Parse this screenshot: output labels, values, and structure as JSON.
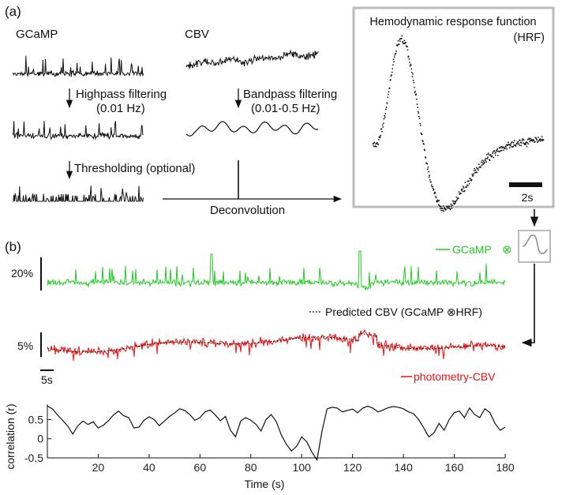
{
  "panel_a": {
    "label": "(a)",
    "gcamp_label": "GCaMP",
    "cbv_label": "CBV",
    "step_highpass": "Highpass filtering",
    "step_highpass_param": "(0.01 Hz)",
    "step_bandpass": "Bandpass filtering",
    "step_bandpass_param": "(0.01-0.5 Hz)",
    "step_threshold": "Thresholding (optional)",
    "step_deconvolution": "Deconvolution",
    "hrf_title": "Hemodynamic response function",
    "hrf_abbrev": "(HRF)",
    "hrf_scale_label": "2s"
  },
  "panel_b": {
    "label": "(b)",
    "gcamp_legend": "GCaMP",
    "conv_symbol": "⊗",
    "predicted_legend": "Predicted CBV (GCaMP ⊗HRF)",
    "photometry_legend": "photometry-CBV",
    "scale_gcamp": "20%",
    "scale_cbv": "5%",
    "scale_time": "5s"
  },
  "colors": {
    "gcamp": "#22cc22",
    "photometry": "#ee1111",
    "box_border": "#bbbbbb",
    "hrf_icon_line": "#888888"
  },
  "chart_data": {
    "type": "line",
    "title": "",
    "xlabel": "Time (s)",
    "ylabel": "correlation (r)",
    "xlim": [
      0,
      180
    ],
    "ylim": [
      -0.5,
      0.9
    ],
    "x_ticks": [
      20,
      40,
      60,
      80,
      100,
      120,
      140,
      160,
      180
    ],
    "y_ticks": [
      0.5,
      0,
      -0.5
    ],
    "y_tick_labels": [
      "0.5",
      "0",
      "-0.5"
    ],
    "series": [
      {
        "name": "correlation",
        "x": [
          0,
          2,
          4,
          6,
          8,
          10,
          12,
          14,
          16,
          18,
          20,
          22,
          24,
          26,
          28,
          30,
          32,
          34,
          36,
          38,
          40,
          42,
          44,
          46,
          48,
          50,
          52,
          54,
          56,
          58,
          60,
          62,
          64,
          66,
          68,
          70,
          72,
          74,
          76,
          78,
          80,
          82,
          84,
          86,
          88,
          90,
          92,
          94,
          96,
          98,
          100,
          102,
          104,
          106,
          108,
          110,
          112,
          114,
          116,
          118,
          120,
          122,
          124,
          126,
          128,
          130,
          132,
          134,
          136,
          138,
          140,
          142,
          144,
          146,
          148,
          150,
          152,
          154,
          156,
          158,
          160,
          162,
          164,
          166,
          168,
          170,
          172,
          174,
          176,
          178,
          180
        ],
        "values": [
          0.85,
          0.78,
          0.62,
          0.48,
          0.33,
          0.12,
          0.34,
          0.46,
          0.37,
          0.44,
          0.28,
          0.35,
          0.47,
          0.62,
          0.72,
          0.6,
          0.55,
          0.28,
          0.3,
          0.48,
          0.57,
          0.5,
          0.34,
          0.46,
          0.58,
          0.67,
          0.78,
          0.74,
          0.63,
          0.48,
          0.55,
          0.7,
          0.75,
          0.62,
          0.47,
          0.58,
          0.22,
          0.05,
          0.46,
          0.55,
          0.48,
          0.38,
          0.2,
          0.5,
          0.63,
          0.45,
          0.1,
          -0.15,
          -0.32,
          -0.2,
          0.05,
          -0.08,
          -0.35,
          -0.55,
          0.2,
          0.78,
          0.82,
          0.8,
          0.7,
          0.74,
          0.77,
          0.68,
          0.8,
          0.85,
          0.8,
          0.7,
          0.75,
          0.81,
          0.84,
          0.82,
          0.78,
          0.7,
          0.65,
          0.5,
          0.28,
          0.05,
          0.15,
          0.4,
          0.22,
          0.5,
          0.68,
          0.72,
          0.55,
          0.8,
          0.63,
          0.55,
          0.78,
          0.68,
          0.4,
          0.22,
          0.3
        ]
      }
    ]
  }
}
